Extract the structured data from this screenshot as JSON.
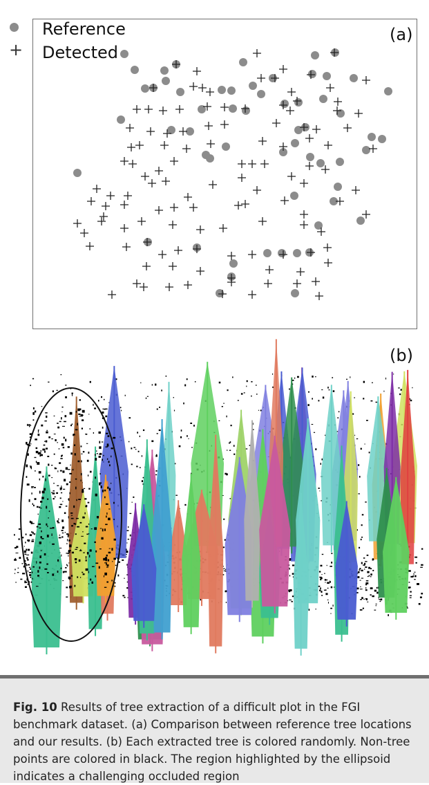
{
  "legend": {
    "reference_label": "Reference",
    "detected_label": "Detected",
    "reference_color": "#8c8c8c",
    "detected_color": "#222222"
  },
  "panel_a_label": "(a)",
  "panel_b_label": "(b)",
  "caption": {
    "figure_label": "Fig. 10",
    "text": "Results of tree extraction of a difficult plot in the FGI benchmark dataset. (a) Comparison between reference tree locations and our results. (b) Each extracted tree is colored randomly. Non-tree points are colored in black. The region highlighted by the ellipsoid indicates a challenging occluded region"
  },
  "tree_colors": [
    "#7e2ea6",
    "#e07a5f",
    "#3bbf8f",
    "#9fd36a",
    "#4a5cd1",
    "#f0a030",
    "#c85a9e",
    "#6fd1c8",
    "#2f8f4e",
    "#b0b0b0",
    "#e04040",
    "#8080e0",
    "#d0e060",
    "#40a0d0",
    "#a06030",
    "#5fd05f"
  ],
  "chart_data": {
    "type": "scatter",
    "series": [
      {
        "name": "Reference",
        "points": [
          [
            180,
            78
          ],
          [
            195,
            101
          ],
          [
            238,
            102
          ],
          [
            255,
            93
          ],
          [
            352,
            90
          ],
          [
            456,
            80
          ],
          [
            485,
            76
          ],
          [
            210,
            128
          ],
          [
            222,
            127
          ],
          [
            240,
            117
          ],
          [
            261,
            133
          ],
          [
            321,
            130
          ],
          [
            335,
            131
          ],
          [
            366,
            124
          ],
          [
            378,
            136
          ],
          [
            395,
            113
          ],
          [
            452,
            107
          ],
          [
            473,
            110
          ],
          [
            512,
            113
          ],
          [
            562,
            132
          ],
          [
            248,
            188
          ],
          [
            275,
            190
          ],
          [
            292,
            158
          ],
          [
            337,
            157
          ],
          [
            356,
            160
          ],
          [
            412,
            150
          ],
          [
            432,
            148
          ],
          [
            442,
            184
          ],
          [
            468,
            143
          ],
          [
            493,
            164
          ],
          [
            175,
            173
          ],
          [
            112,
            250
          ],
          [
            304,
            229
          ],
          [
            298,
            224
          ],
          [
            327,
            212
          ],
          [
            427,
            207
          ],
          [
            449,
            227
          ],
          [
            464,
            236
          ],
          [
            492,
            234
          ],
          [
            530,
            217
          ],
          [
            538,
            198
          ],
          [
            553,
            201
          ],
          [
            410,
            220
          ],
          [
            432,
            188
          ],
          [
            426,
            283
          ],
          [
            483,
            291
          ],
          [
            489,
            270
          ],
          [
            522,
            319
          ],
          [
            461,
            326
          ],
          [
            387,
            366
          ],
          [
            408,
            366
          ],
          [
            430,
            366
          ],
          [
            448,
            365
          ],
          [
            335,
            400
          ],
          [
            338,
            381
          ],
          [
            318,
            424
          ],
          [
            427,
            424
          ],
          [
            285,
            358
          ],
          [
            214,
            350
          ]
        ]
      },
      {
        "name": "Detected",
        "points": [
          [
            372,
            77
          ],
          [
            255,
            93
          ],
          [
            285,
            103
          ],
          [
            410,
            100
          ],
          [
            378,
            113
          ],
          [
            398,
            113
          ],
          [
            484,
            76
          ],
          [
            450,
            108
          ],
          [
            530,
            116
          ],
          [
            222,
            127
          ],
          [
            280,
            125
          ],
          [
            293,
            127
          ],
          [
            304,
            133
          ],
          [
            422,
            133
          ],
          [
            430,
            146
          ],
          [
            410,
            152
          ],
          [
            478,
            127
          ],
          [
            489,
            147
          ],
          [
            519,
            164
          ],
          [
            198,
            158
          ],
          [
            215,
            158
          ],
          [
            236,
            160
          ],
          [
            260,
            158
          ],
          [
            300,
            154
          ],
          [
            325,
            155
          ],
          [
            355,
            157
          ],
          [
            400,
            178
          ],
          [
            420,
            160
          ],
          [
            440,
            184
          ],
          [
            458,
            187
          ],
          [
            488,
            160
          ],
          [
            503,
            185
          ],
          [
            188,
            185
          ],
          [
            218,
            190
          ],
          [
            242,
            193
          ],
          [
            265,
            190
          ],
          [
            302,
            182
          ],
          [
            325,
            180
          ],
          [
            380,
            204
          ],
          [
            410,
            212
          ],
          [
            448,
            200
          ],
          [
            475,
            210
          ],
          [
            540,
            215
          ],
          [
            190,
            213
          ],
          [
            202,
            210
          ],
          [
            238,
            210
          ],
          [
            270,
            215
          ],
          [
            305,
            208
          ],
          [
            180,
            233
          ],
          [
            192,
            237
          ],
          [
            230,
            247
          ],
          [
            252,
            233
          ],
          [
            350,
            237
          ],
          [
            365,
            237
          ],
          [
            383,
            237
          ],
          [
            448,
            240
          ],
          [
            471,
            245
          ],
          [
            140,
            273
          ],
          [
            160,
            283
          ],
          [
            185,
            283
          ],
          [
            210,
            255
          ],
          [
            220,
            265
          ],
          [
            240,
            262
          ],
          [
            272,
            285
          ],
          [
            308,
            267
          ],
          [
            350,
            257
          ],
          [
            372,
            275
          ],
          [
            345,
            297
          ],
          [
            355,
            295
          ],
          [
            422,
            255
          ],
          [
            440,
            265
          ],
          [
            132,
            291
          ],
          [
            153,
            298
          ],
          [
            180,
            296
          ],
          [
            230,
            304
          ],
          [
            252,
            300
          ],
          [
            280,
            300
          ],
          [
            412,
            290
          ],
          [
            492,
            291
          ],
          [
            515,
            275
          ],
          [
            150,
            313
          ],
          [
            147,
            320
          ],
          [
            112,
            323
          ],
          [
            122,
            337
          ],
          [
            180,
            330
          ],
          [
            205,
            320
          ],
          [
            250,
            325
          ],
          [
            290,
            332
          ],
          [
            323,
            330
          ],
          [
            380,
            320
          ],
          [
            440,
            310
          ],
          [
            465,
            335
          ],
          [
            440,
            325
          ],
          [
            530,
            310
          ],
          [
            130,
            356
          ],
          [
            183,
            357
          ],
          [
            213,
            350
          ],
          [
            258,
            362
          ],
          [
            285,
            360
          ],
          [
            335,
            370
          ],
          [
            365,
            368
          ],
          [
            410,
            368
          ],
          [
            450,
            365
          ],
          [
            474,
            358
          ],
          [
            212,
            385
          ],
          [
            235,
            368
          ],
          [
            250,
            385
          ],
          [
            290,
            392
          ],
          [
            335,
            402
          ],
          [
            390,
            390
          ],
          [
            435,
            393
          ],
          [
            475,
            380
          ],
          [
            198,
            410
          ],
          [
            208,
            415
          ],
          [
            245,
            415
          ],
          [
            272,
            412
          ],
          [
            335,
            408
          ],
          [
            388,
            410
          ],
          [
            430,
            410
          ],
          [
            457,
            407
          ],
          [
            162,
            426
          ],
          [
            322,
            425
          ],
          [
            365,
            426
          ],
          [
            462,
            428
          ]
        ]
      }
    ]
  }
}
